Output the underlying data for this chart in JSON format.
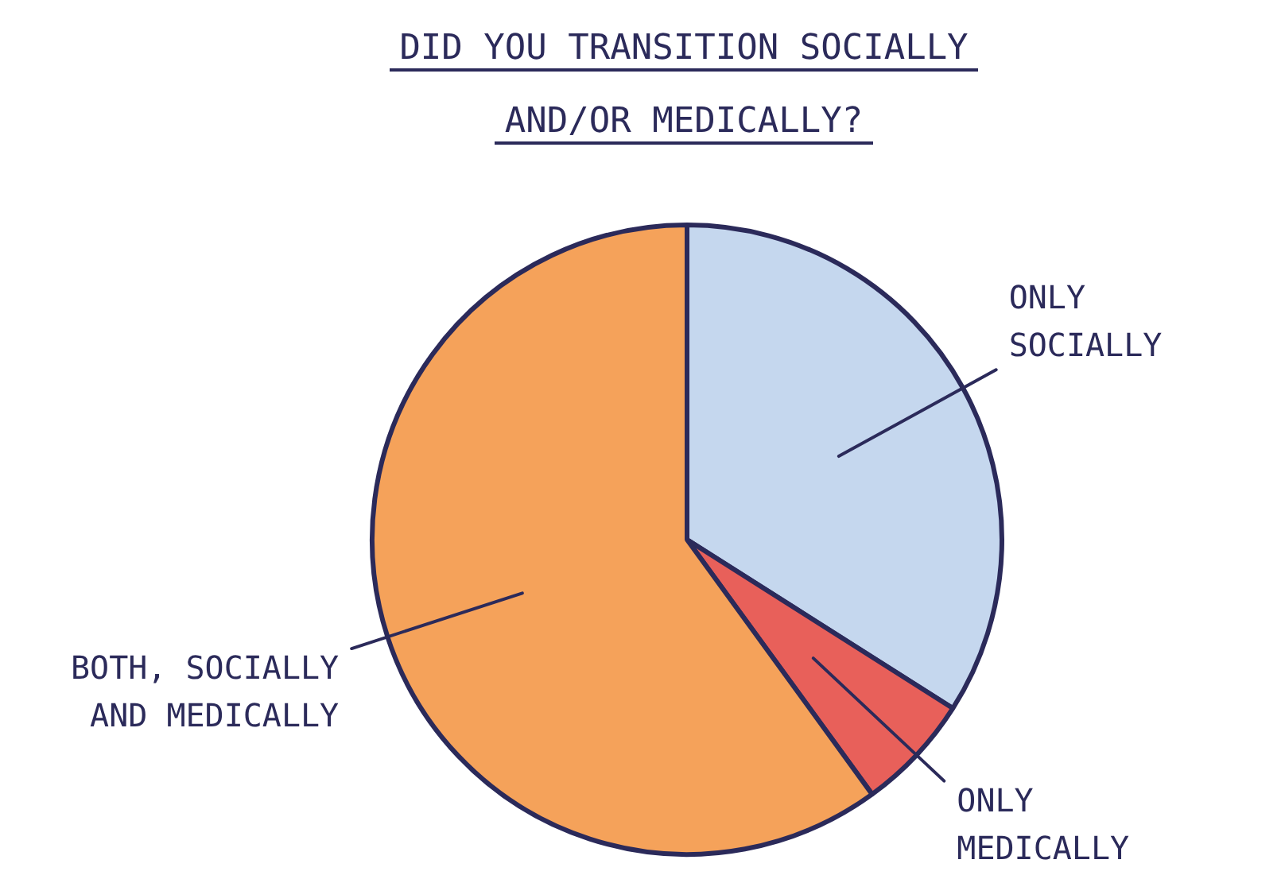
{
  "chart_data": {
    "type": "pie",
    "title": "DID YOU TRANSITION SOCIALLY AND/OR MEDICALLY?",
    "categories": [
      "ONLY SOCIALLY",
      "ONLY MEDICALLY",
      "BOTH, SOCIALLY AND MEDICALLY"
    ],
    "values": [
      34,
      6,
      60
    ],
    "colors": [
      "#c5d7ee",
      "#e8605a",
      "#f5a25a"
    ],
    "legend": false
  }
}
